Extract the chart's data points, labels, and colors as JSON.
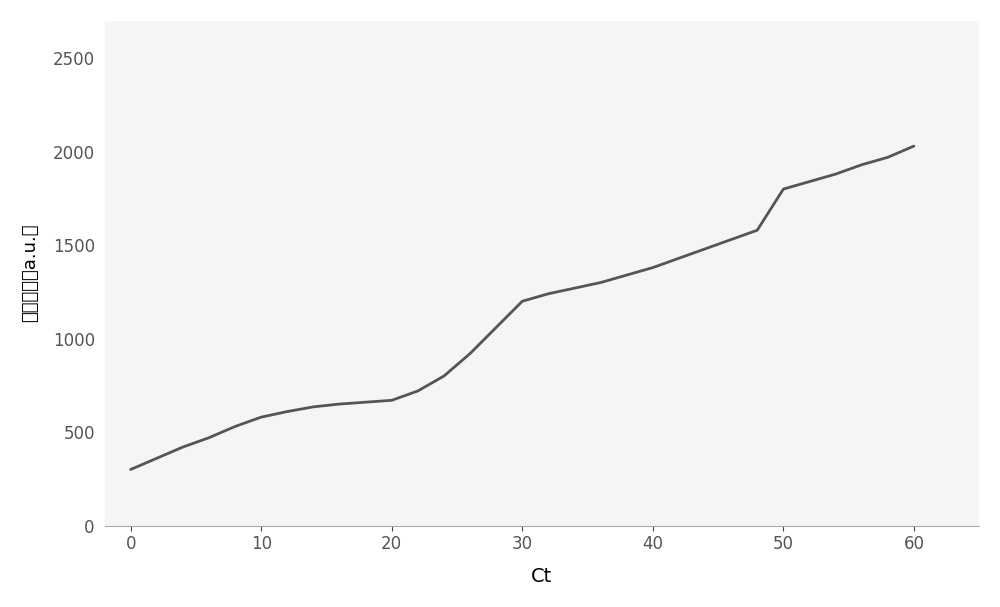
{
  "x": [
    0,
    2,
    4,
    6,
    8,
    10,
    12,
    14,
    16,
    18,
    20,
    22,
    24,
    26,
    28,
    30,
    32,
    34,
    36,
    38,
    40,
    42,
    44,
    46,
    48,
    50,
    52,
    54,
    56,
    58,
    60
  ],
  "y": [
    300,
    360,
    420,
    470,
    530,
    580,
    610,
    635,
    650,
    660,
    670,
    720,
    800,
    920,
    1060,
    1200,
    1240,
    1270,
    1300,
    1340,
    1380,
    1430,
    1480,
    1530,
    1580,
    1800,
    1840,
    1880,
    1930,
    1970,
    2030
  ],
  "xlabel": "Ct",
  "ylabel": "荧光强度（a.u.）",
  "xlim": [
    -2,
    65
  ],
  "ylim": [
    0,
    2700
  ],
  "xticks": [
    0,
    10,
    20,
    30,
    40,
    50,
    60
  ],
  "yticks": [
    0,
    500,
    1000,
    1500,
    2000,
    2500
  ],
  "line_color": "#555555",
  "line_width": 2.0,
  "background_color": "#f5f5f5",
  "figure_background": "#ffffff"
}
